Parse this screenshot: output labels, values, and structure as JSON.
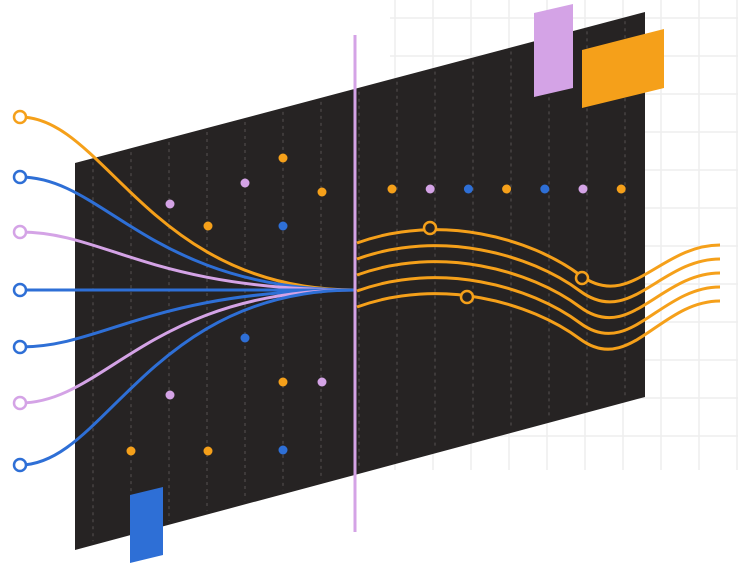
{
  "colors": {
    "background": "#ffffff",
    "panel": "#262323",
    "gridline": "#eeeeee",
    "panel_dashes": "#6b6666",
    "orange": "#f5a01a",
    "blue": "#2e6fd6",
    "lavender": "#d4a3e6"
  },
  "illustration": {
    "left_inputs": [
      {
        "color": "orange",
        "icon": "open-circle-node"
      },
      {
        "color": "blue",
        "icon": "open-circle-node"
      },
      {
        "color": "lavender",
        "icon": "open-circle-node"
      },
      {
        "color": "blue",
        "icon": "open-circle-node"
      },
      {
        "color": "blue",
        "icon": "open-circle-node"
      },
      {
        "color": "lavender",
        "icon": "open-circle-node"
      },
      {
        "color": "blue",
        "icon": "open-circle-node"
      }
    ],
    "top_dot_row": [
      "orange",
      "lavender",
      "blue",
      "orange",
      "blue",
      "lavender",
      "orange"
    ],
    "output_waves": 5,
    "decor_blocks": [
      "lavender",
      "orange",
      "blue"
    ]
  }
}
